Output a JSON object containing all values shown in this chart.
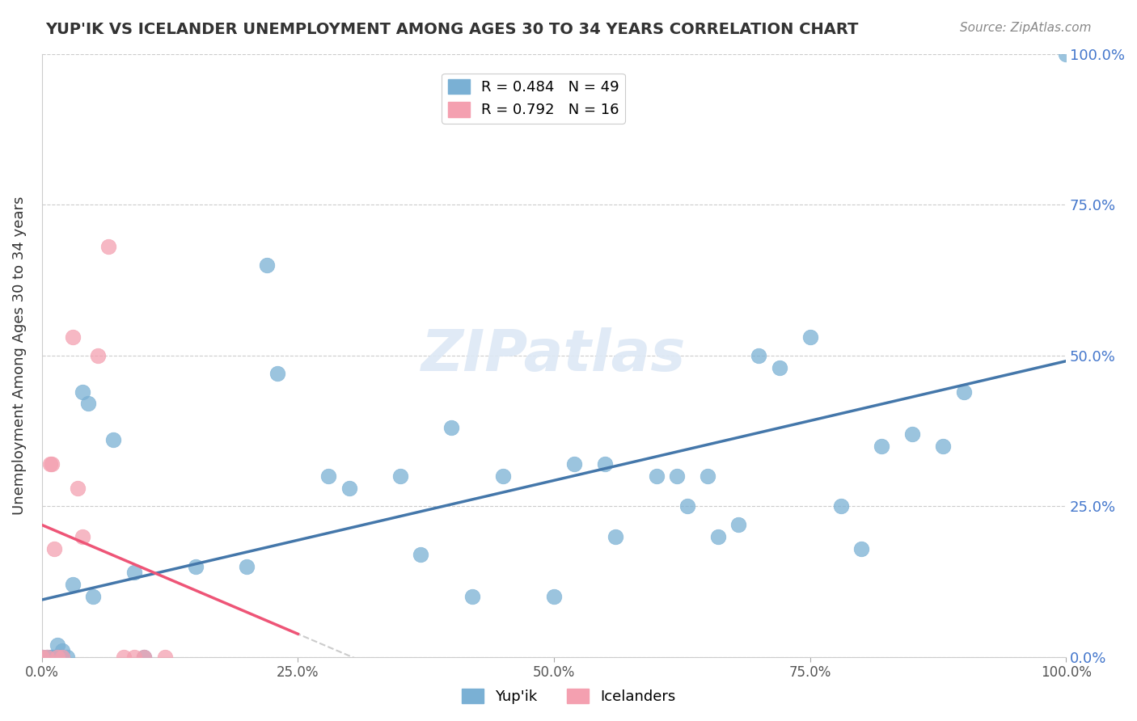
{
  "title": "YUP'IK VS ICELANDER UNEMPLOYMENT AMONG AGES 30 TO 34 YEARS CORRELATION CHART",
  "source": "Source: ZipAtlas.com",
  "xlabel_bottom": "",
  "ylabel": "Unemployment Among Ages 30 to 34 years",
  "x_tick_labels": [
    "0.0%",
    "100.0%"
  ],
  "y_tick_labels": [
    "0.0%",
    "25.0%",
    "50.0%",
    "75.0%",
    "100.0%"
  ],
  "x_tick_positions": [
    0.0,
    1.0
  ],
  "y_tick_positions": [
    0.0,
    0.25,
    0.5,
    0.75,
    1.0
  ],
  "legend_labels": [
    "Yup'ik",
    "Icelanders"
  ],
  "legend_R_N": [
    {
      "R": "0.484",
      "N": "49",
      "color": "#6699cc"
    },
    {
      "R": "0.792",
      "N": "16",
      "color": "#ff8899"
    }
  ],
  "watermark": "ZIPatlas",
  "background_color": "#ffffff",
  "grid_color": "#cccccc",
  "yupik_color": "#7ab0d4",
  "icelander_color": "#f4a0b0",
  "yupik_line_color": "#4477aa",
  "icelander_line_color": "#ee5577",
  "yupik_points": [
    [
      0.0,
      0.0
    ],
    [
      0.005,
      0.0
    ],
    [
      0.008,
      0.0
    ],
    [
      0.01,
      0.0
    ],
    [
      0.012,
      0.0
    ],
    [
      0.015,
      0.0
    ],
    [
      0.015,
      0.02
    ],
    [
      0.018,
      0.0
    ],
    [
      0.02,
      0.0
    ],
    [
      0.02,
      0.01
    ],
    [
      0.025,
      0.0
    ],
    [
      0.03,
      0.12
    ],
    [
      0.04,
      0.44
    ],
    [
      0.045,
      0.42
    ],
    [
      0.05,
      0.1
    ],
    [
      0.07,
      0.36
    ],
    [
      0.09,
      0.14
    ],
    [
      0.1,
      0.0
    ],
    [
      0.15,
      0.15
    ],
    [
      0.2,
      0.15
    ],
    [
      0.22,
      0.65
    ],
    [
      0.23,
      0.47
    ],
    [
      0.28,
      0.3
    ],
    [
      0.3,
      0.28
    ],
    [
      0.35,
      0.3
    ],
    [
      0.37,
      0.17
    ],
    [
      0.4,
      0.38
    ],
    [
      0.42,
      0.1
    ],
    [
      0.45,
      0.3
    ],
    [
      0.5,
      0.1
    ],
    [
      0.52,
      0.32
    ],
    [
      0.55,
      0.32
    ],
    [
      0.56,
      0.2
    ],
    [
      0.6,
      0.3
    ],
    [
      0.62,
      0.3
    ],
    [
      0.63,
      0.25
    ],
    [
      0.65,
      0.3
    ],
    [
      0.66,
      0.2
    ],
    [
      0.68,
      0.22
    ],
    [
      0.7,
      0.5
    ],
    [
      0.72,
      0.48
    ],
    [
      0.75,
      0.53
    ],
    [
      0.78,
      0.25
    ],
    [
      0.8,
      0.18
    ],
    [
      0.82,
      0.35
    ],
    [
      0.85,
      0.37
    ],
    [
      0.88,
      0.35
    ],
    [
      0.9,
      0.44
    ],
    [
      1.0,
      1.0
    ]
  ],
  "icelander_points": [
    [
      0.0,
      0.0
    ],
    [
      0.005,
      0.0
    ],
    [
      0.008,
      0.32
    ],
    [
      0.01,
      0.32
    ],
    [
      0.012,
      0.18
    ],
    [
      0.015,
      0.0
    ],
    [
      0.02,
      0.0
    ],
    [
      0.03,
      0.53
    ],
    [
      0.035,
      0.28
    ],
    [
      0.04,
      0.2
    ],
    [
      0.055,
      0.5
    ],
    [
      0.065,
      0.68
    ],
    [
      0.08,
      0.0
    ],
    [
      0.09,
      0.0
    ],
    [
      0.1,
      0.0
    ],
    [
      0.12,
      0.0
    ]
  ],
  "yupik_R": 0.484,
  "icelander_R": 0.792,
  "xlim": [
    0.0,
    1.0
  ],
  "ylim": [
    0.0,
    1.0
  ]
}
